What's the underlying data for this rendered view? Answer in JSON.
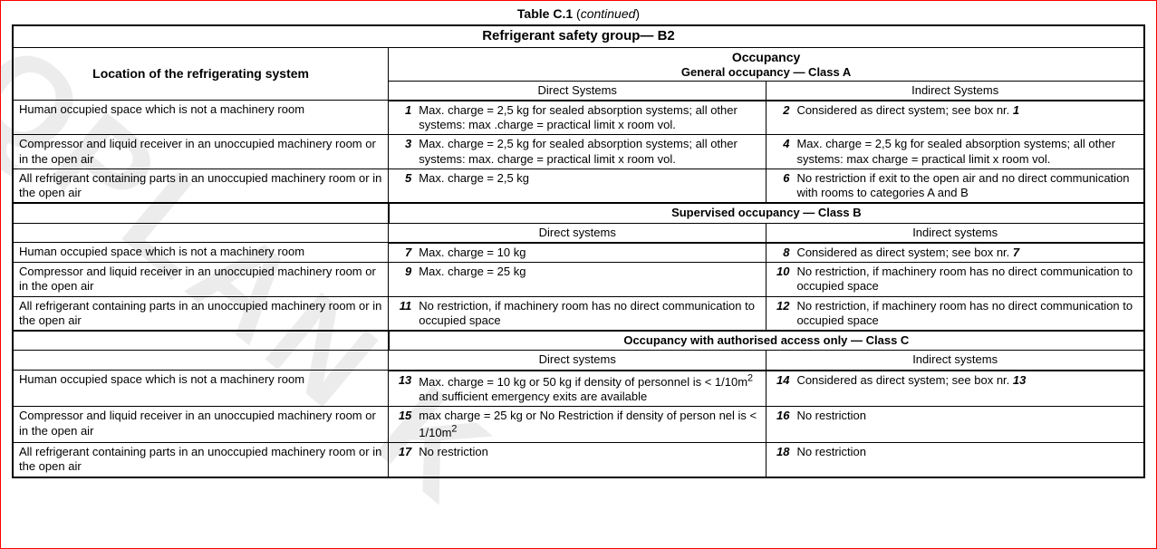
{
  "caption_b": "Table C.1",
  "caption_i": "continued",
  "watermark": "QPLAN K",
  "colors": {
    "outer_border": "#ff0000",
    "line": "#000000",
    "bg": "#ffffff"
  },
  "main_header": "Refrigerant safety group— B2",
  "loc_header": "Location of the refrigerating system",
  "occ_header": "Occupancy",
  "occ_sub_a": "General occupancy — Class A",
  "direct_label": "Direct Systems",
  "indirect_label": "Indirect Systems",
  "direct_label_lc": "Direct systems",
  "indirect_label_lc": "Indirect systems",
  "class_b_label": "Supervised occupancy — Class B",
  "class_c_label": "Occupancy with authorised access only — Class C",
  "locations": {
    "r1": "Human occupied space which is not a machinery room",
    "r2": "Compressor and liquid receiver in an unoccupied machinery room or in the open air",
    "r3": "All refrigerant containing parts in an unoccupied machinery room or in the open air"
  },
  "cells": {
    "n1": "1",
    "t1": "Max. charge = 2,5 kg for sealed absorption systems; all other systems: max .charge = practical limit x  room vol.",
    "n2": "2",
    "t2": "Considered as direct system; see box nr. 1",
    "n3": "3",
    "t3": "Max. charge = 2,5 kg for sealed absorption systems; all other systems: max. charge = practical limit x  room vol.",
    "n4": "4",
    "t4": "Max. charge = 2,5 kg for sealed absorption systems; all other systems: max charge = practical limit x  room vol.",
    "n5": "5",
    "t5": "Max. charge = 2,5 kg",
    "n6": "6",
    "t6": "No restriction if exit to the open air and no direct communi­cation with rooms to categories A and B",
    "n7": "7",
    "t7": "Max. charge = 10 kg",
    "n8": "8",
    "t8": "Considered as direct system; see box nr. 7",
    "n9": "9",
    "t9": "Max. charge = 25 kg",
    "n10": "10",
    "t10": "No restriction, if machinery room has no direct communi­cation to occupied space",
    "n11": "11",
    "t11": "No restriction, if machinery room has no direct communi­cation to occupied space",
    "n12": "12",
    "t12": "No restriction, if machinery room has no direct communi­cation to occupied space",
    "n13": "13",
    "t13": "Max. charge = 10 kg or 50 kg if density of personnel is < 1/10m² and sufficient emergency exits are available",
    "n14": "14",
    "t14": "Considered as direct system; see box nr. 13",
    "n15": "15",
    "t15": "max charge = 25 kg or No Restriction if density of person nel    is < 1/10m²",
    "n16": "16",
    "t16": "No restriction",
    "n17": "17",
    "t17": "No restriction",
    "n18": "18",
    "t18": "No restriction"
  }
}
